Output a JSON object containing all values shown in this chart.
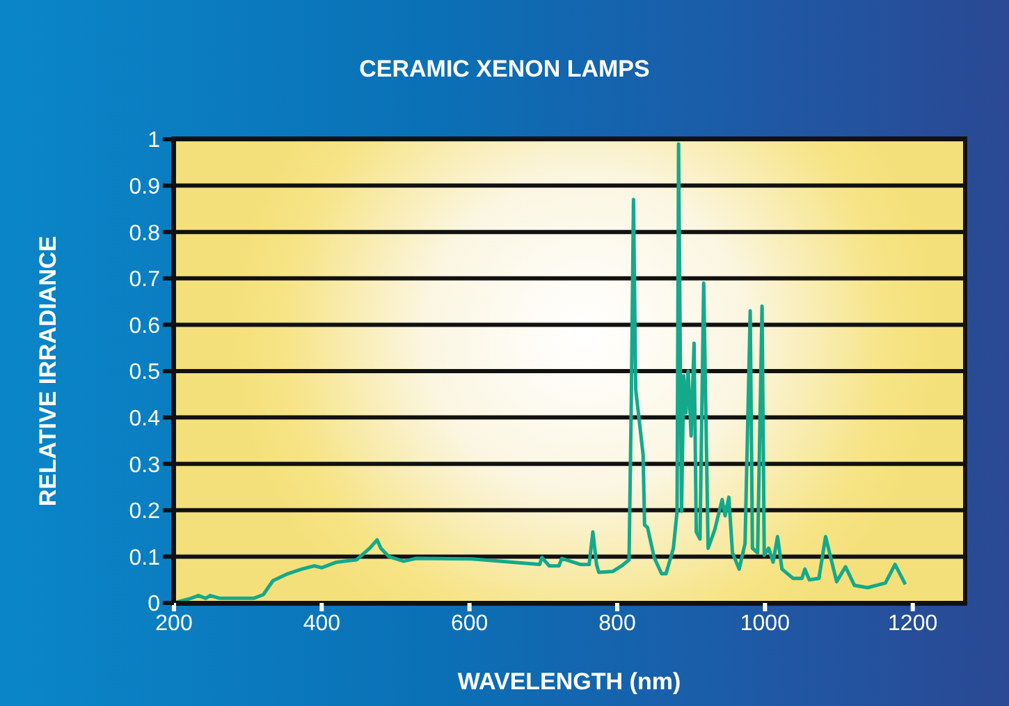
{
  "chart_data": {
    "type": "line",
    "title": "CERAMIC XENON LAMPS",
    "xlabel": "WAVELENGTH (nm)",
    "ylabel": "RELATIVE IRRADIANCE",
    "xlim": [
      200,
      1270
    ],
    "xticks": [
      200,
      400,
      600,
      800,
      1000,
      1200
    ],
    "ylim": [
      0,
      1
    ],
    "yticks": [
      0,
      0.1,
      0.2,
      0.3,
      0.4,
      0.5,
      0.6,
      0.7,
      0.8,
      0.9,
      1
    ],
    "grid": "y",
    "marker": "none",
    "line_style": "solid",
    "series": [
      {
        "color": "#14a98b",
        "x": [
          200,
          223,
          233,
          243,
          249,
          262,
          308,
          321,
          334,
          354,
          373,
          390,
          400,
          420,
          447,
          465,
          475,
          480,
          491,
          511,
          527,
          603,
          695,
          698,
          708,
          721,
          725,
          731,
          750,
          762,
          767,
          772,
          775,
          794,
          806,
          816,
          819,
          822,
          825,
          835,
          837,
          841,
          850,
          860,
          866,
          876,
          881,
          883,
          887,
          890,
          893,
          896,
          900,
          904,
          907,
          912,
          917,
          923,
          932,
          942,
          946,
          951,
          956,
          965,
          973,
          980,
          983,
          990,
          996,
          999,
          1005,
          1011,
          1017,
          1023,
          1038,
          1050,
          1054,
          1060,
          1073,
          1082,
          1097,
          1109,
          1121,
          1139,
          1163,
          1176,
          1190
        ],
        "values": [
          0,
          0.01,
          0.016,
          0.01,
          0.016,
          0.01,
          0.01,
          0.018,
          0.048,
          0.063,
          0.073,
          0.08,
          0.076,
          0.088,
          0.093,
          0.118,
          0.136,
          0.118,
          0.1,
          0.09,
          0.096,
          0.095,
          0.083,
          0.098,
          0.08,
          0.08,
          0.096,
          0.093,
          0.083,
          0.083,
          0.153,
          0.083,
          0.066,
          0.068,
          0.08,
          0.093,
          0.43,
          0.87,
          0.46,
          0.32,
          0.168,
          0.163,
          0.098,
          0.063,
          0.063,
          0.118,
          0.198,
          0.99,
          0.198,
          0.49,
          0.41,
          0.5,
          0.36,
          0.56,
          0.153,
          0.138,
          0.69,
          0.118,
          0.158,
          0.223,
          0.188,
          0.228,
          0.108,
          0.073,
          0.128,
          0.63,
          0.118,
          0.108,
          0.64,
          0.103,
          0.118,
          0.088,
          0.143,
          0.073,
          0.053,
          0.053,
          0.073,
          0.05,
          0.053,
          0.143,
          0.046,
          0.078,
          0.038,
          0.033,
          0.043,
          0.083,
          0.04
        ]
      }
    ]
  }
}
